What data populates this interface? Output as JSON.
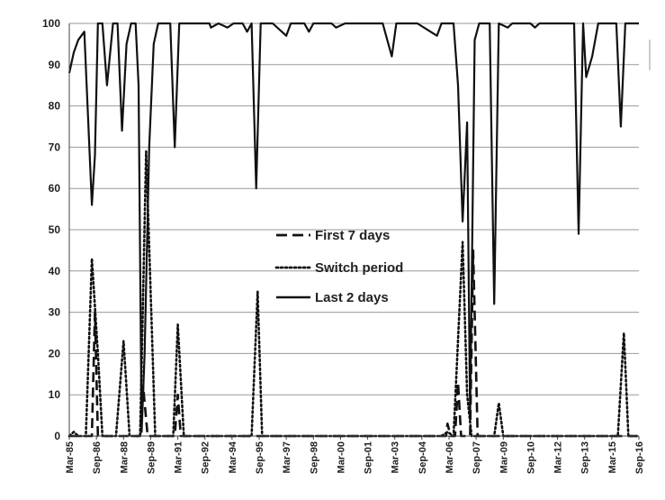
{
  "chart_data": {
    "type": "line",
    "title": "",
    "xlabel": "",
    "ylabel": "",
    "ylim": [
      0,
      100
    ],
    "yticks": [
      0,
      10,
      20,
      30,
      40,
      50,
      60,
      70,
      80,
      90,
      100
    ],
    "grid": "horizontal",
    "legend_position": "center",
    "x_tick_labels": [
      "Mar-85",
      "Sep-86",
      "Mar-88",
      "Sep-89",
      "Mar-91",
      "Sep-92",
      "Mar-94",
      "Sep-95",
      "Mar-97",
      "Sep-98",
      "Mar-00",
      "Sep-01",
      "Mar-03",
      "Sep-04",
      "Mar-06",
      "Sep-07",
      "Mar-09",
      "Sep-10",
      "Mar-12",
      "Sep-13",
      "Mar-15",
      "Sep-16"
    ],
    "series": [
      {
        "name": "First 7 days",
        "color": "#111111",
        "style": "dashed",
        "points": [
          [
            "Mar-85",
            0
          ],
          [
            "Jun-86",
            0
          ],
          [
            "Aug-86",
            30
          ],
          [
            "Oct-86",
            0
          ],
          [
            "Feb-89",
            0
          ],
          [
            "Apr-89",
            12
          ],
          [
            "Jul-89",
            0
          ],
          [
            "Jan-91",
            0
          ],
          [
            "Mar-91",
            10
          ],
          [
            "May-91",
            0
          ],
          [
            "Jan-06",
            0
          ],
          [
            "Feb-06",
            3
          ],
          [
            "Apr-06",
            0
          ],
          [
            "Jul-06",
            0
          ],
          [
            "Sep-06",
            13
          ],
          [
            "Nov-06",
            0
          ],
          [
            "May-07",
            0
          ],
          [
            "Jul-07",
            45
          ],
          [
            "Oct-07",
            0
          ],
          [
            "Sep-16",
            0
          ]
        ]
      },
      {
        "name": "Switch period",
        "color": "#111111",
        "style": "dotted",
        "points": [
          [
            "Mar-85",
            0
          ],
          [
            "Jun-85",
            1
          ],
          [
            "Sep-85",
            0
          ],
          [
            "Feb-86",
            0
          ],
          [
            "Jun-86",
            43
          ],
          [
            "Oct-86",
            20
          ],
          [
            "Jan-87",
            0
          ],
          [
            "Oct-87",
            0
          ],
          [
            "Mar-88",
            23
          ],
          [
            "Jul-88",
            0
          ],
          [
            "Feb-89",
            0
          ],
          [
            "Jun-89",
            69
          ],
          [
            "Sep-89",
            35
          ],
          [
            "Dec-89",
            0
          ],
          [
            "Dec-90",
            0
          ],
          [
            "Mar-91",
            27
          ],
          [
            "Jul-91",
            0
          ],
          [
            "Apr-95",
            0
          ],
          [
            "Aug-95",
            35
          ],
          [
            "Nov-95",
            0
          ],
          [
            "Oct-05",
            0
          ],
          [
            "Feb-06",
            1
          ],
          [
            "Jun-06",
            0
          ],
          [
            "Jun-06",
            0
          ],
          [
            "Dec-06",
            47
          ],
          [
            "Mar-07",
            10
          ],
          [
            "Jun-07",
            0
          ],
          [
            "Sep-08",
            0
          ],
          [
            "Dec-08",
            8
          ],
          [
            "Mar-09",
            0
          ],
          [
            "Jul-15",
            0
          ],
          [
            "Nov-15",
            25
          ],
          [
            "Feb-16",
            0
          ],
          [
            "Sep-16",
            0
          ]
        ]
      },
      {
        "name": "Last 2 days",
        "color": "#111111",
        "style": "solid",
        "points": [
          [
            "Mar-85",
            88
          ],
          [
            "Jun-85",
            93
          ],
          [
            "Sep-85",
            96
          ],
          [
            "Jan-86",
            98
          ],
          [
            "Jun-86",
            56
          ],
          [
            "Aug-86",
            68
          ],
          [
            "Oct-86",
            100
          ],
          [
            "Jan-87",
            100
          ],
          [
            "Apr-87",
            85
          ],
          [
            "Aug-87",
            100
          ],
          [
            "Nov-87",
            100
          ],
          [
            "Feb-88",
            74
          ],
          [
            "May-88",
            95
          ],
          [
            "Aug-88",
            100
          ],
          [
            "Nov-88",
            100
          ],
          [
            "Jan-89",
            85
          ],
          [
            "Mar-89",
            1
          ],
          [
            "May-89",
            20
          ],
          [
            "Aug-89",
            70
          ],
          [
            "Nov-89",
            95
          ],
          [
            "Feb-90",
            100
          ],
          [
            "Oct-90",
            100
          ],
          [
            "Jan-91",
            70
          ],
          [
            "Apr-91",
            100
          ],
          [
            "Dec-92",
            100
          ],
          [
            "Jan-93",
            99
          ],
          [
            "Jun-93",
            100
          ],
          [
            "Dec-93",
            99
          ],
          [
            "Apr-94",
            100
          ],
          [
            "Oct-94",
            100
          ],
          [
            "Jan-95",
            98
          ],
          [
            "Apr-95",
            100
          ],
          [
            "Jul-95",
            60
          ],
          [
            "Oct-95",
            100
          ],
          [
            "Jun-96",
            100
          ],
          [
            "Mar-97",
            97
          ],
          [
            "Jun-97",
            100
          ],
          [
            "Mar-98",
            100
          ],
          [
            "Jun-98",
            98
          ],
          [
            "Sep-98",
            100
          ],
          [
            "Sep-99",
            100
          ],
          [
            "Dec-99",
            99
          ],
          [
            "Jun-00",
            100
          ],
          [
            "Jul-02",
            100
          ],
          [
            "Jan-03",
            92
          ],
          [
            "Apr-03",
            100
          ],
          [
            "Jun-04",
            100
          ],
          [
            "Jul-05",
            97
          ],
          [
            "Oct-05",
            100
          ],
          [
            "Jun-06",
            100
          ],
          [
            "Sep-06",
            85
          ],
          [
            "Dec-06",
            52
          ],
          [
            "Mar-07",
            76
          ],
          [
            "May-07",
            5
          ],
          [
            "Aug-07",
            96
          ],
          [
            "Nov-07",
            100
          ],
          [
            "Jun-08",
            100
          ],
          [
            "Sep-08",
            32
          ],
          [
            "Dec-08",
            100
          ],
          [
            "Jun-09",
            99
          ],
          [
            "Sep-09",
            100
          ],
          [
            "Sep-10",
            100
          ],
          [
            "Dec-10",
            99
          ],
          [
            "Mar-11",
            100
          ],
          [
            "Feb-13",
            100
          ],
          [
            "May-13",
            49
          ],
          [
            "Aug-13",
            100
          ],
          [
            "Oct-13",
            87
          ],
          [
            "Feb-14",
            92
          ],
          [
            "Jun-14",
            100
          ],
          [
            "Jun-15",
            100
          ],
          [
            "Sep-15",
            75
          ],
          [
            "Dec-15",
            100
          ],
          [
            "Sep-16",
            100
          ]
        ]
      }
    ]
  }
}
